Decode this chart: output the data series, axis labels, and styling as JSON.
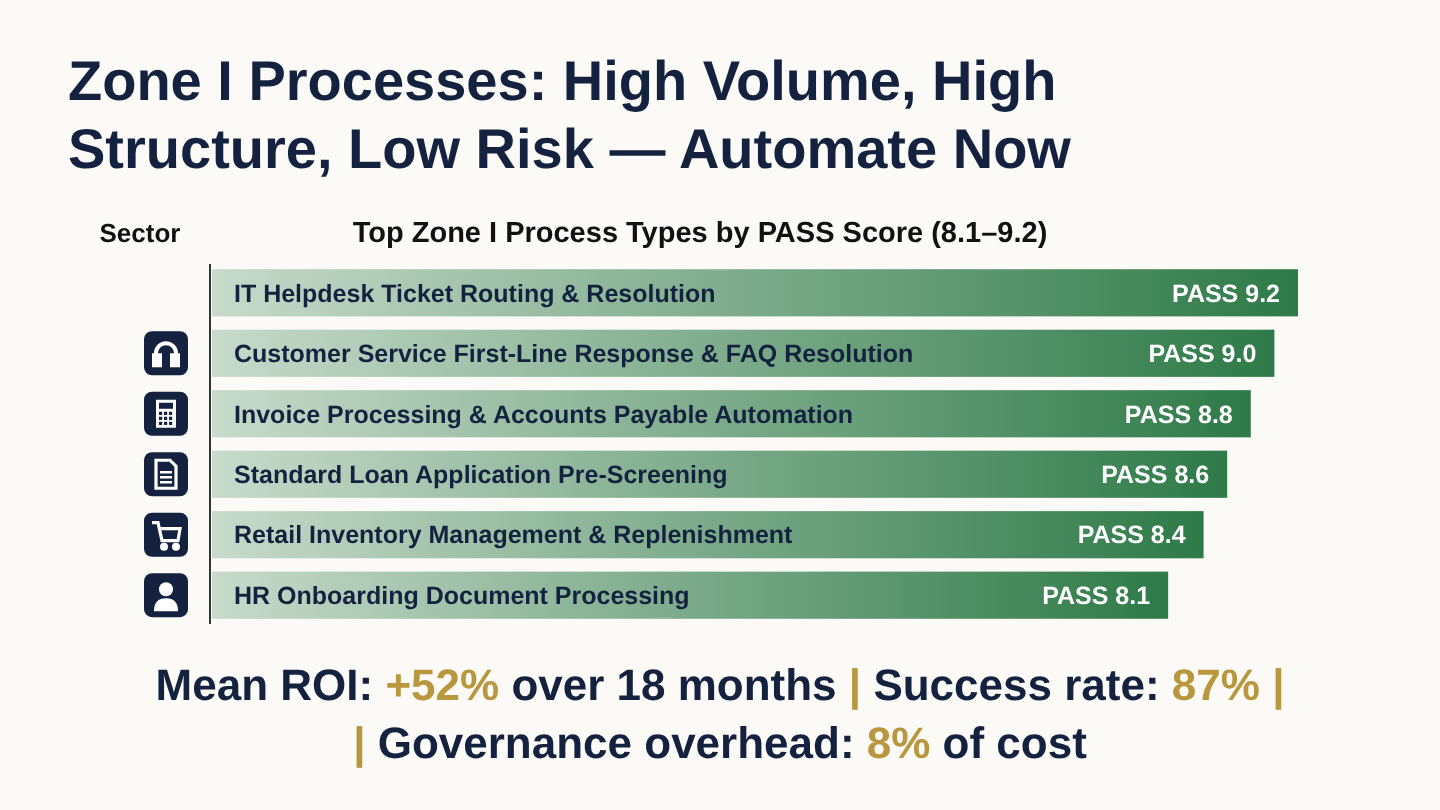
{
  "chart_data": {
    "type": "bar",
    "orientation": "horizontal",
    "title": "Zone I Processes: High Volume, High Structure, Low Risk — Automate Now",
    "subtitle": "Top Zone I Process Types by PASS Score (8.1–9.2)",
    "ylabel": "Sector",
    "categories": [
      "IT Helpdesk Ticket Routing & Resolution",
      "Customer Service First-Line Response & FAQ Resolution",
      "Invoice Processing & Accounts Payable Automation",
      "Standard Loan Application Pre-Screening",
      "Retail Inventory Management & Replenishment",
      "HR Onboarding Document Processing"
    ],
    "values": [
      9.2,
      9.0,
      8.8,
      8.6,
      8.4,
      8.1
    ],
    "value_labels": [
      "PASS 9.2",
      "PASS 9.0",
      "PASS 8.8",
      "PASS 8.6",
      "PASS 8.4",
      "PASS 8.1"
    ],
    "color": "#2e7a48",
    "annotations": [
      "Mean ROI: +52% over 18 months | Success rate: 87% |",
      "| Governance overhead: 8% of cost"
    ]
  }
}
